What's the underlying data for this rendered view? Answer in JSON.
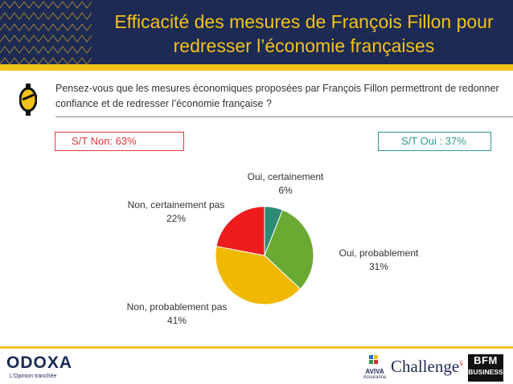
{
  "header": {
    "title_line1": "Efficacité des mesures de François Fillon pour",
    "title_line2": "redresser l’économie françaises"
  },
  "question": "Pensez-vous que les mesures économiques proposées par François Fillon permettront de redonner confiance et de redresser l’économie française ?",
  "totals": {
    "non_label": "S/T Non: 63%",
    "oui_label": "S/T Oui : 37%"
  },
  "chart_data": {
    "type": "pie",
    "slices": [
      {
        "label": "Oui, certainement",
        "value": 6,
        "display": "6%",
        "color": "#2e8b75"
      },
      {
        "label": "Oui, probablement",
        "value": 31,
        "display": "31%",
        "color": "#6aaa32"
      },
      {
        "label": "Non, probablement pas",
        "value": 41,
        "display": "41%",
        "color": "#f0b800"
      },
      {
        "label": "Non, certainement pas",
        "value": 22,
        "display": "22%",
        "color": "#ee1c1c"
      }
    ]
  },
  "footer": {
    "odoxa": "ODOXA",
    "odoxa_tagline": "L’Opinion tranchée",
    "aviva": "AVIVA",
    "aviva_sub": "Assurance",
    "challenges": "Challenge",
    "challenges_s": "s",
    "bfm_line1": "BFM",
    "bfm_line2": "BUSINESS"
  },
  "colors": {
    "navy": "#1c2a54",
    "gold": "#f2c21b",
    "non_red": "#e03a3a",
    "oui_teal": "#2e9a8c"
  }
}
